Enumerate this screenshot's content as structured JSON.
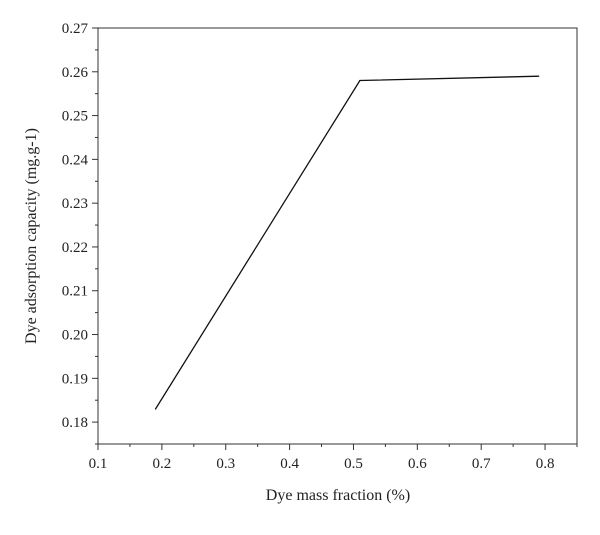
{
  "chart_data": {
    "type": "line",
    "xlabel": "Dye mass fraction (%)",
    "ylabel": "Dye adsorption capacity (mg.g-1)",
    "xlim": [
      0.1,
      0.85
    ],
    "ylim": [
      0.175,
      0.27
    ],
    "x_ticks": [
      "0.1",
      "0.2",
      "0.3",
      "0.4",
      "0.5",
      "0.6",
      "0.7",
      "0.8"
    ],
    "y_ticks": [
      "0.18",
      "0.19",
      "0.20",
      "0.21",
      "0.22",
      "0.23",
      "0.24",
      "0.25",
      "0.26",
      "0.27"
    ],
    "grid": false,
    "series": [
      {
        "x": [
          0.19,
          0.51,
          0.79
        ],
        "y": [
          0.183,
          0.258,
          0.259
        ],
        "color": "#111111"
      }
    ]
  }
}
